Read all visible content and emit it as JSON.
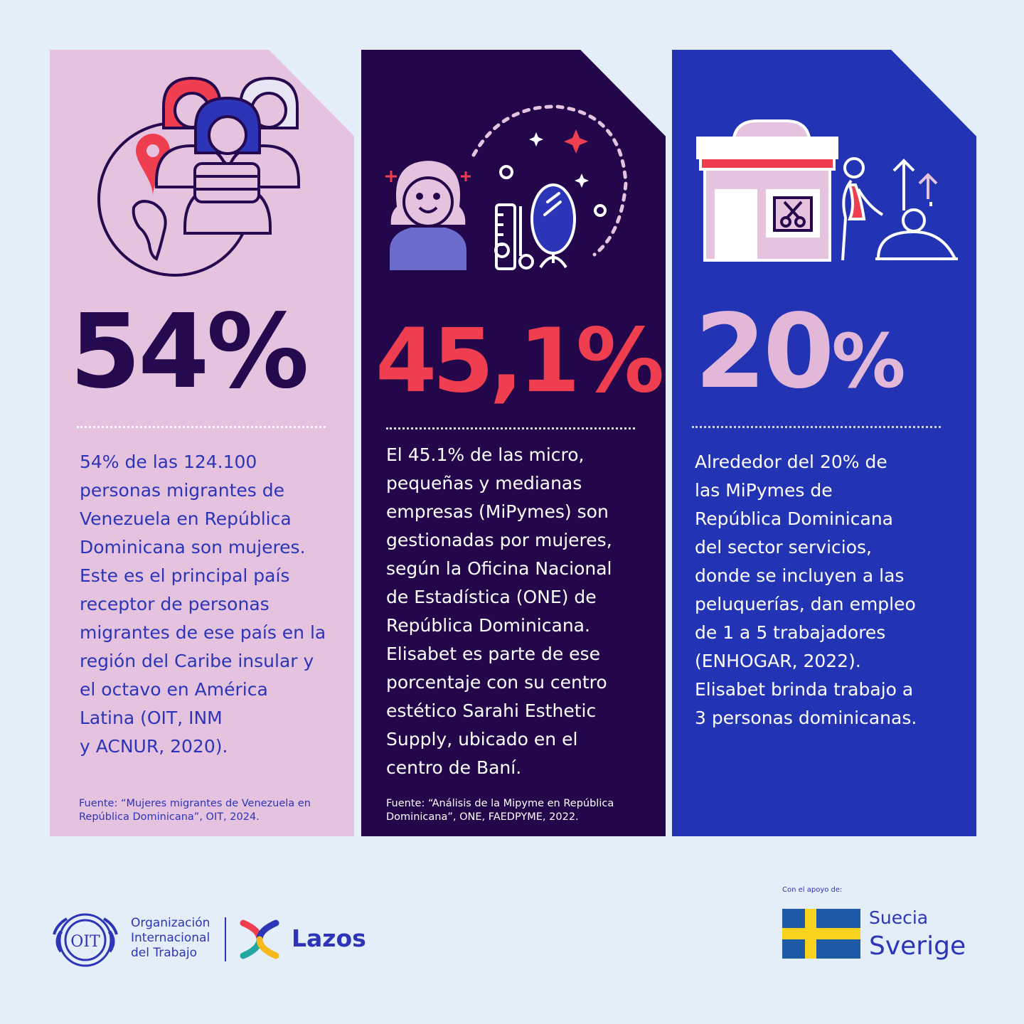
{
  "colors": {
    "background": "#e4eef8",
    "card1": "#e5c2de",
    "card2": "#23074a",
    "card3": "#2234b4",
    "accent_red": "#ef3e4f",
    "accent_blue": "#2c35b7",
    "accent_pink": "#e2b7d8",
    "flag_blue": "#1f5aa8",
    "flag_yellow": "#f8d21c"
  },
  "cards": [
    {
      "stat": "54%",
      "body_lines": [
        "54% de las 124.100",
        "personas migrantes de",
        "Venezuela en República",
        "Dominicana son mujeres.",
        "Este es el principal país",
        "receptor de personas",
        "migrantes de ese país en la",
        "región del Caribe insular y",
        "el octavo en América",
        "Latina (OIT, INM",
        "y ACNUR, 2020)."
      ],
      "source_lines": [
        "Fuente: “Mujeres migrantes de Venezuela en",
        "República Dominicana”, OIT, 2024."
      ],
      "icons": [
        "globe-icon",
        "location-pin-icon",
        "women-group-icon"
      ]
    },
    {
      "stat": "45,1%",
      "body_lines": [
        "El 45.1% de las micro,",
        "pequeñas y medianas",
        "empresas (MiPymes) son",
        "gestionadas por mujeres,",
        "según la Oficina Nacional",
        "de Estadística (ONE) de",
        "República Dominicana.",
        "Elisabet es parte de ese",
        "porcentaje con su centro",
        "estético Sarahi Esthetic",
        "Supply, ubicado en el",
        "centro de Baní."
      ],
      "source_lines": [
        "Fuente: “Análisis de la Mipyme en República",
        "Dominicana”, ONE, FAEDPYME, 2022."
      ],
      "icons": [
        "woman-portrait-icon",
        "comb-scissors-icon",
        "mirror-icon",
        "sparkle-icon"
      ]
    },
    {
      "stat_number": "20",
      "stat_symbol": "%",
      "body_lines": [
        "Alrededor del 20% de",
        "las MiPymes de",
        "República Dominicana",
        "del sector servicios,",
        "donde se incluyen a las",
        "peluquerías, dan empleo",
        "de 1 a 5 trabajadores",
        "(ENHOGAR, 2022).",
        "Elisabet brinda trabajo a",
        "3 personas dominicanas."
      ],
      "icons": [
        "salon-storefront-icon",
        "scissors-icon",
        "massage-worker-icon",
        "growth-arrows-icon"
      ]
    }
  ],
  "footer": {
    "oit_name_lines": [
      "Organización",
      "Internacional",
      "del Trabajo"
    ],
    "oit_emblem_text": "OIT",
    "lazos": "Lazos",
    "support_label": "Con el apoyo de:",
    "suecia": "Suecia",
    "sverige": "Sverige"
  }
}
